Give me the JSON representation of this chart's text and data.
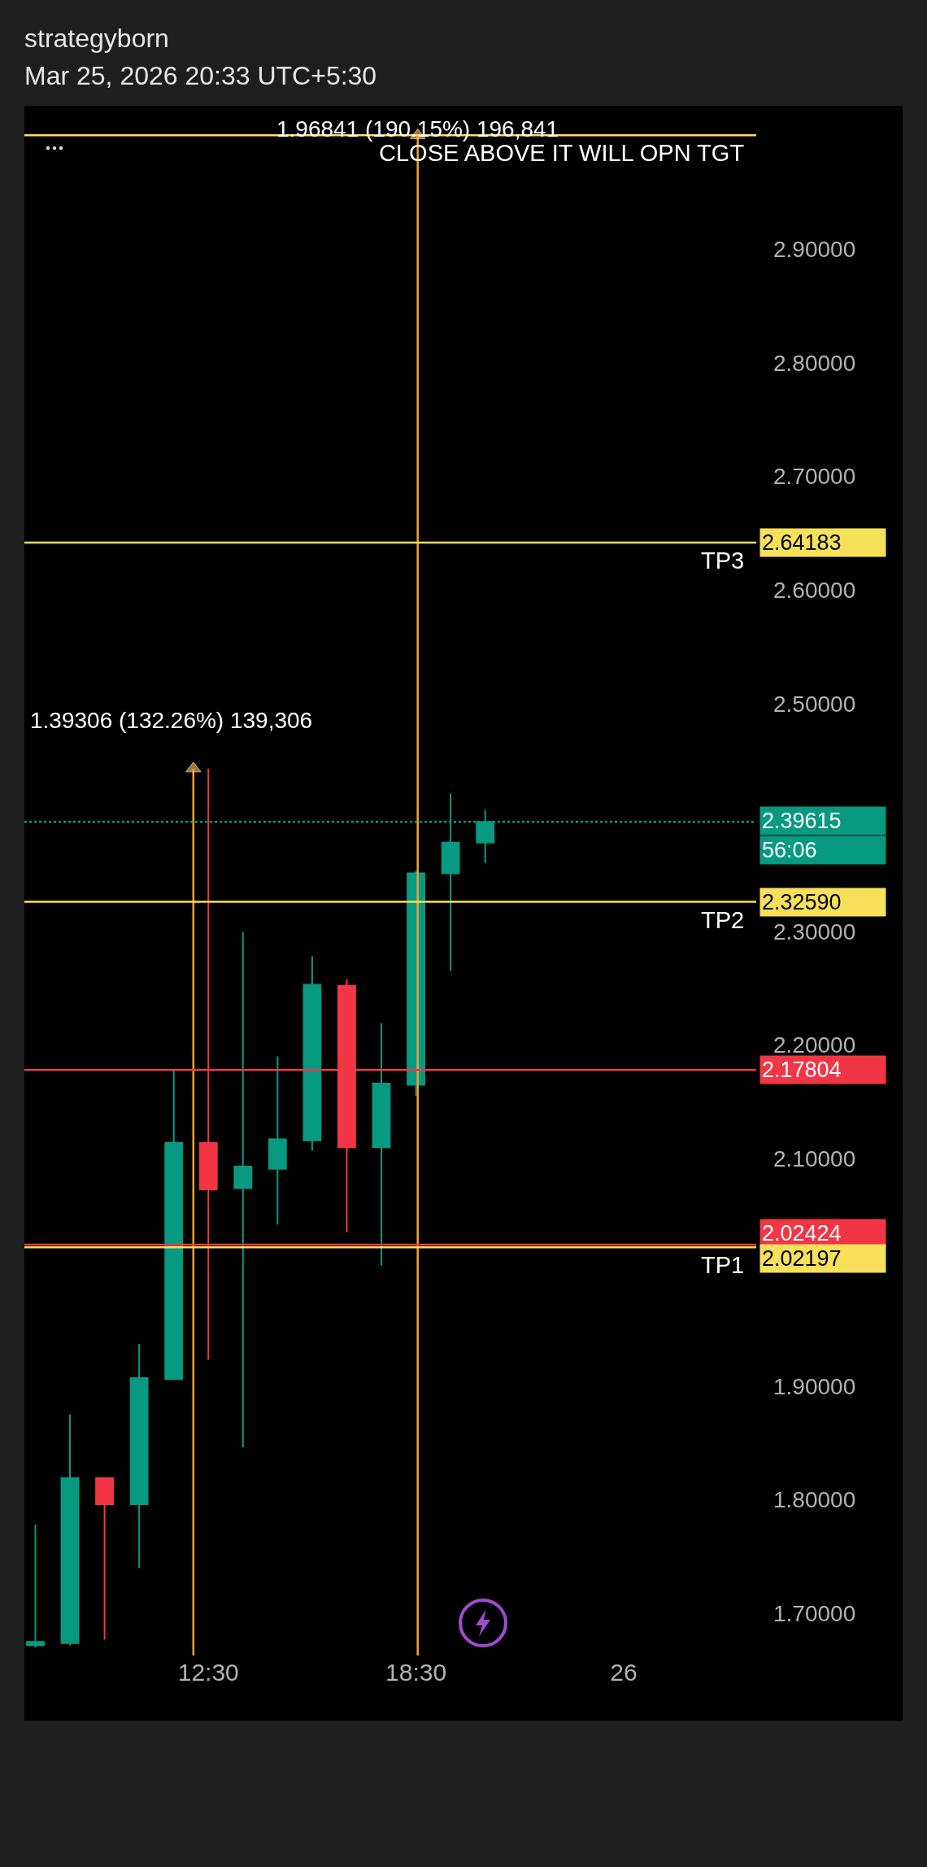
{
  "chart_data": {
    "type": "candlestick",
    "title": "strategyborn",
    "subtitle": "Mar 25, 2026 20:33 UTC+5:30",
    "x": [
      "2026-03-25T07:30",
      "2026-03-25T08:30",
      "2026-03-25T09:30",
      "2026-03-25T10:30",
      "2026-03-25T11:30",
      "2026-03-25T12:30",
      "2026-03-25T13:30",
      "2026-03-25T14:30",
      "2026-03-25T15:30",
      "2026-03-25T16:30",
      "2026-03-25T17:30",
      "2026-03-25T18:30",
      "2026-03-25T19:30",
      "2026-03-25T20:30"
    ],
    "ohlc": [
      [
        1.672,
        1.778,
        1.67,
        1.675
      ],
      [
        1.674,
        1.875,
        1.672,
        1.819
      ],
      [
        1.819,
        1.819,
        1.677,
        1.796
      ],
      [
        1.796,
        1.937,
        1.74,
        1.907
      ],
      [
        1.906,
        2.178,
        1.906,
        2.114
      ],
      [
        2.114,
        2.443,
        1.923,
        2.073
      ],
      [
        2.074,
        2.299,
        1.846,
        2.093
      ],
      [
        2.091,
        2.19,
        2.042,
        2.117
      ],
      [
        2.116,
        2.278,
        2.107,
        2.253
      ],
      [
        2.252,
        2.258,
        2.035,
        2.11
      ],
      [
        2.11,
        2.219,
        2.006,
        2.166
      ],
      [
        2.165,
        2.353,
        2.155,
        2.351
      ],
      [
        2.351,
        2.421,
        2.265,
        2.378
      ],
      [
        2.378,
        2.407,
        2.36,
        2.39615
      ]
    ],
    "series": [
      {
        "type": "line",
        "x": [
          "2026-03-25T12:04",
          "2026-03-25T12:04"
        ],
        "values": [
          1.663,
          2.443
        ],
        "color": "#f7a13b",
        "marker": "triangle"
      },
      {
        "type": "line",
        "x": [
          "2026-03-25T18:33",
          "2026-03-25T18:33"
        ],
        "values": [
          1.663,
          3.0
        ],
        "color": "#f7a13b",
        "marker": "triangle"
      }
    ],
    "xlim": [
      "2026-03-25T07:11",
      "2026-03-26T04:20"
    ],
    "xticks": [
      {
        "value": "2026-03-25T12:30",
        "label": "12:30"
      },
      {
        "value": "2026-03-25T18:30",
        "label": "18:30"
      },
      {
        "value": "2026-03-26T00:30",
        "label": "26"
      }
    ],
    "ylim": [
      1.663,
      3.026
    ],
    "yticks": [
      {
        "value": 1.7,
        "label": "1.70000"
      },
      {
        "value": 1.8,
        "label": "1.80000"
      },
      {
        "value": 1.9,
        "label": "1.90000"
      },
      {
        "value": 2.1,
        "label": "2.10000"
      },
      {
        "value": 2.2,
        "label": "2.20000"
      },
      {
        "value": 2.3,
        "label": "2.30000"
      },
      {
        "value": 2.5,
        "label": "2.50000"
      },
      {
        "value": 2.6,
        "label": "2.60000"
      },
      {
        "value": 2.7,
        "label": "2.70000"
      },
      {
        "value": 2.8,
        "label": "2.80000"
      },
      {
        "value": 2.9,
        "label": "2.90000"
      }
    ],
    "grid": false,
    "ref_lines": [
      {
        "axis": "y",
        "value": 3.0,
        "color": "#f7e05a"
      },
      {
        "axis": "y",
        "value": 2.64183,
        "label": "2.64183",
        "color": "#f7e05a"
      },
      {
        "axis": "y",
        "value": 2.39615,
        "label": "2.39615",
        "color": "#089981",
        "line_style": "dotted"
      },
      {
        "axis": "y",
        "value": 2.3259,
        "label": "2.32590",
        "color": "#f7e05a"
      },
      {
        "axis": "y",
        "value": 2.17804,
        "label": "2.17804",
        "color": "#f23645"
      },
      {
        "axis": "y",
        "value": 2.02424,
        "label": "2.02424",
        "color": "#f23645"
      },
      {
        "axis": "y",
        "value": 2.02197,
        "label": "2.02197",
        "color": "#f7e05a"
      }
    ],
    "annotations": [
      {
        "text": "1.39306 (132.26%) 139,306",
        "x": "2026-03-25T12:04",
        "y": 2.443
      },
      {
        "text": "1.96841 (190.15%) 196,841",
        "x": "2026-03-25T18:33",
        "y": 3.0
      },
      {
        "text": "CLOSE ABOVE IT WILL OPN TGT",
        "y": 3.0
      },
      {
        "text": "TP3",
        "y": 2.64183
      },
      "56:06",
      {
        "text": "TP2",
        "y": 2.3259
      },
      {
        "text": "TP1",
        "y": 2.02197
      }
    ]
  }
}
